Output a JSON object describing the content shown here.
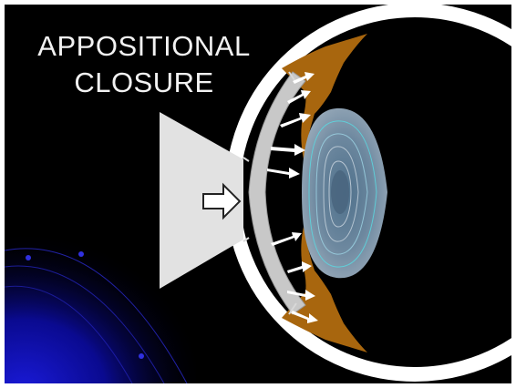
{
  "slide": {
    "title_line1": "APPOSITIONAL",
    "title_line2": "CLOSURE"
  },
  "colors": {
    "background": "#000000",
    "sclera": "#ffffff",
    "cornea": "#c8c8c8",
    "iris": "#a8660e",
    "lens_outer": "#8e9fb0",
    "lens_inner": "#5f7c94",
    "lens_contours": "#5ad8e0",
    "light_beam": "#e2e2e2",
    "arrows": "#ffffff",
    "corner_glow": "#1010b8"
  },
  "icons": {
    "push_arrow": "outline-right-arrow-icon",
    "flow_arrows": "white-arrow-icon"
  }
}
